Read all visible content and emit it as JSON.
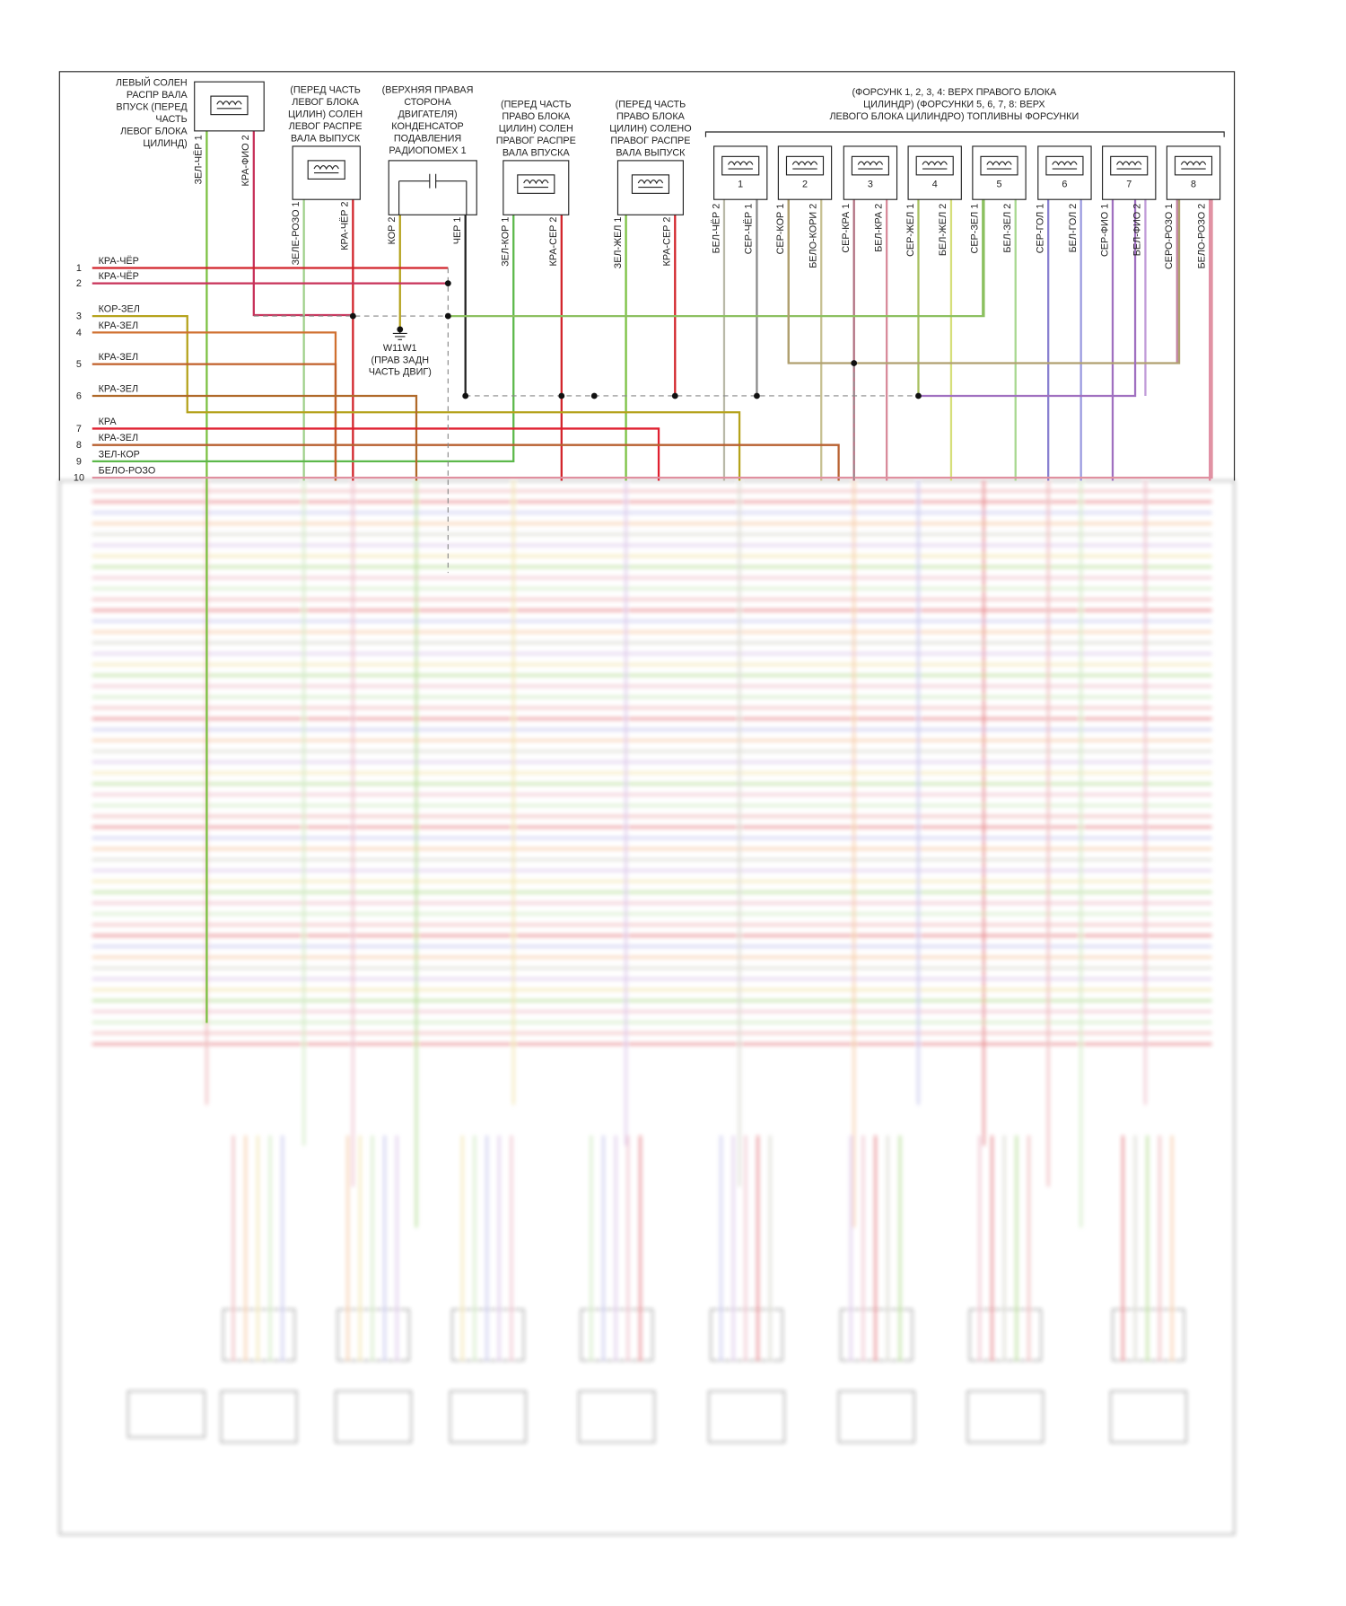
{
  "components": [
    {
      "label": [
        "ЛЕВЫЙ СОЛЕН",
        "РАСПР ВАЛА",
        "ВПУСК (ПЕРЕД",
        "ЧАСТЬ",
        "ЛЕВОГ БЛОКА",
        "ЦИЛИНД)"
      ],
      "pins": [
        {
          "wire": "ЗЕЛ-ЧЁР",
          "number": "1"
        },
        {
          "wire": "КРА-ФИО",
          "number": "2"
        }
      ]
    },
    {
      "label": [
        "(ПЕРЕД ЧАСТЬ",
        "ЛЕВОГ БЛОКА",
        "ЦИЛИН) СОЛЕН",
        "ЛЕВОГ РАСПРЕ",
        "ВАЛА ВЫПУСК"
      ],
      "pins": [
        {
          "wire": "ЗЕЛЕ-РОЗО",
          "number": "1"
        },
        {
          "wire": "КРА-ЧЁР",
          "number": "2"
        }
      ]
    },
    {
      "label": [
        "(ВЕРХНЯЯ ПРАВАЯ",
        "СТОРОНА",
        "ДВИГАТЕЛЯ)",
        "КОНДЕНСАТОР",
        "ПОДАВЛЕНИЯ",
        "РАДИОПОМЕХ 1"
      ],
      "pins": [
        {
          "wire": "КОР",
          "number": "2"
        },
        {
          "wire": "ЧЕР",
          "number": "1"
        }
      ]
    },
    {
      "label": [
        "(ПЕРЕД ЧАСТЬ",
        "ПРАВО БЛОКА",
        "ЦИЛИН) СОЛЕН",
        "ПРАВОГ РАСПРЕ",
        "ВАЛА ВПУСКА"
      ],
      "pins": [
        {
          "wire": "ЗЕЛ-КОР",
          "number": "1"
        },
        {
          "wire": "КРА-СЕР",
          "number": "2"
        }
      ]
    },
    {
      "label": [
        "(ПЕРЕД ЧАСТЬ",
        "ПРАВО БЛОКА",
        "ЦИЛИН) СОЛЕНО",
        "ПРАВОГ РАСПРЕ",
        "ВАЛА ВЫПУСК"
      ],
      "pins": [
        {
          "wire": "ЗЕЛ-ЖЕЛ",
          "number": "1"
        },
        {
          "wire": "КРА-СЕР",
          "number": "2"
        }
      ]
    }
  ],
  "injectors": {
    "title": [
      "(ФОРСУНК 1, 2, 3, 4: ВЕРХ ПРАВОГО БЛОКА",
      "ЦИЛИНДР) (ФОРСУНКИ 5, 6, 7, 8: ВЕРХ",
      "ЛЕВОГО БЛОКА ЦИЛИНДРО) ТОПЛИВНЫ ФОРСУНКИ"
    ],
    "items": [
      {
        "number": "1",
        "pins": [
          {
            "wire": "БЕЛ-ЧЁР",
            "number": "2"
          },
          {
            "wire": "СЕР-ЧЁР",
            "number": "1"
          }
        ]
      },
      {
        "number": "2",
        "pins": [
          {
            "wire": "СЕР-КОР",
            "number": "1"
          },
          {
            "wire": "БЕЛО-КОРИ",
            "number": "2"
          }
        ]
      },
      {
        "number": "3",
        "pins": [
          {
            "wire": "СЕР-КРА",
            "number": "1"
          },
          {
            "wire": "БЕЛ-КРА",
            "number": "2"
          }
        ]
      },
      {
        "number": "4",
        "pins": [
          {
            "wire": "СЕР-ЖЕЛ",
            "number": "1"
          },
          {
            "wire": "БЕЛ-ЖЕЛ",
            "number": "2"
          }
        ]
      },
      {
        "number": "5",
        "pins": [
          {
            "wire": "СЕР-ЗЕЛ",
            "number": "1"
          },
          {
            "wire": "БЕЛ-ЗЕЛ",
            "number": "2"
          }
        ]
      },
      {
        "number": "6",
        "pins": [
          {
            "wire": "СЕР-ГОЛ",
            "number": "1"
          },
          {
            "wire": "БЕЛ-ГОЛ",
            "number": "2"
          }
        ]
      },
      {
        "number": "7",
        "pins": [
          {
            "wire": "СЕР-ФИО",
            "number": "1"
          },
          {
            "wire": "БЕЛ-ФИО",
            "number": "2"
          }
        ]
      },
      {
        "number": "8",
        "pins": [
          {
            "wire": "СЕРО-РОЗО",
            "number": "1"
          },
          {
            "wire": "БЕЛО-РОЗО",
            "number": "2"
          }
        ]
      }
    ]
  },
  "ground": {
    "label": [
      "W11W1",
      "(ПРАВ ЗАДН",
      "ЧАСТЬ ДВИГ)"
    ]
  },
  "connector": {
    "rows": [
      {
        "number": "1",
        "wire": "КРА-ЧЁР"
      },
      {
        "number": "2",
        "wire": "КРА-ЧЁР"
      },
      {
        "number": "3",
        "wire": "КОР-ЗЕЛ"
      },
      {
        "number": "4",
        "wire": "КРА-ЗЕЛ"
      },
      {
        "number": "5",
        "wire": "КРА-ЗЕЛ"
      },
      {
        "number": "6",
        "wire": "КРА-ЗЕЛ"
      },
      {
        "number": "7",
        "wire": "КРА"
      },
      {
        "number": "8",
        "wire": "КРА-ЗЕЛ"
      },
      {
        "number": "9",
        "wire": "ЗЕЛ-КОР"
      },
      {
        "number": "10",
        "wire": "БЕЛО-РОЗО"
      }
    ]
  }
}
